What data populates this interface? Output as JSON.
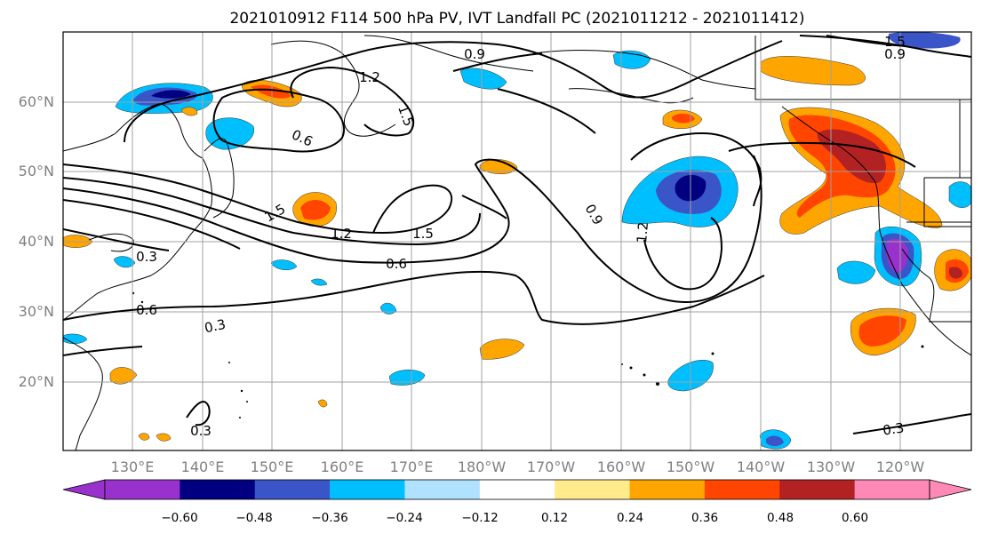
{
  "figure": {
    "title": "2021010912 F114 500 hPa PV, IVT Landfall PC (2021011212 - 2021011412)"
  },
  "map": {
    "lat_ticks": [
      "60°N",
      "50°N",
      "40°N",
      "30°N",
      "20°N"
    ],
    "lon_ticks": [
      "130°E",
      "140°E",
      "150°E",
      "160°E",
      "170°E",
      "180°W",
      "170°W",
      "160°W",
      "150°W",
      "140°W",
      "130°W",
      "120°W"
    ],
    "contour_labels": [
      "0.9",
      "1.2",
      "1.5",
      "0.6",
      "1.5",
      "1.2",
      "1.5",
      "0.9",
      "1.2",
      "0.6",
      "0.3",
      "0.6",
      "0.3",
      "0.3",
      "0.3",
      "1.5",
      "0.9"
    ],
    "colors": {
      "tick_text": "#808080",
      "grid": "#a0a0a0",
      "contour": "#000000"
    }
  },
  "colorbar": {
    "tick_labels": [
      "−0.60",
      "−0.48",
      "−0.36",
      "−0.24",
      "−0.12",
      "0.12",
      "0.24",
      "0.36",
      "0.48",
      "0.60"
    ],
    "colors": [
      "#9932cc",
      "#000080",
      "#3a55c8",
      "#00bfff",
      "#b0e2ff",
      "#ffffff",
      "#ffeb8c",
      "#ffa500",
      "#ff4500",
      "#b22222",
      "#ff89b6"
    ]
  }
}
